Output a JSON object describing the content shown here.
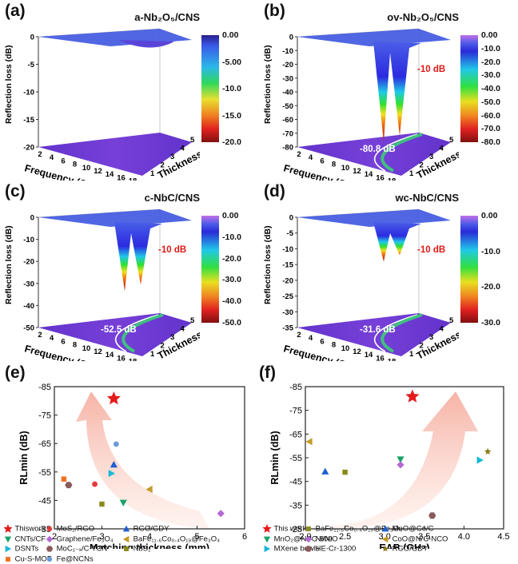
{
  "panels3d": [
    {
      "label": "(a)",
      "title": "a-Nb₂O₅/CNS",
      "cbar": [
        "0.00",
        "-5.00",
        "-10.0",
        "-15.0",
        "-20.0"
      ],
      "zticks": [
        "0",
        "-5",
        "-10",
        "-15",
        "-20"
      ],
      "min_label": "",
      "ten_label": ""
    },
    {
      "label": "(b)",
      "title": "ov-Nb₂O₅/CNS",
      "cbar": [
        "0.00",
        "-10.0",
        "-20.0",
        "-30.0",
        "-40.0",
        "-50.0",
        "-60.0",
        "-70.0",
        "-80.0"
      ],
      "zticks": [
        "0",
        "-10",
        "-20",
        "-30",
        "-40",
        "-50",
        "-60",
        "-70",
        "-80"
      ],
      "min_label": "-80.8 dB",
      "ten_label": "-10 dB"
    },
    {
      "label": "(c)",
      "title": "c-NbC/CNS",
      "cbar": [
        "0.00",
        "-10.0",
        "-20.0",
        "-30.0",
        "-40.0",
        "-50.0"
      ],
      "zticks": [
        "0",
        "-10",
        "-20",
        "-30",
        "-40",
        "-50"
      ],
      "min_label": "-52.5 dB",
      "ten_label": "-10 dB"
    },
    {
      "label": "(d)",
      "title": "wc-NbC/CNS",
      "cbar": [
        "0.00",
        "-10.0",
        "-20.0",
        "-30.0"
      ],
      "zticks": [
        "0",
        "-5",
        "-10",
        "-15",
        "-20",
        "-25",
        "-30",
        "-35"
      ],
      "min_label": "-31.6 dB",
      "ten_label": "-10 dB"
    }
  ],
  "axes3d": {
    "zlabel": "Reflection loss (dB)",
    "xlabel": "Frequency (GHz)",
    "ylabel": "Thickness (mm)",
    "xticks": [
      "2",
      "4",
      "6",
      "8",
      "10",
      "12",
      "14",
      "16",
      "18"
    ],
    "yticks": [
      "1",
      "2",
      "3",
      "4",
      "5"
    ]
  },
  "chart_data": [
    {
      "type": "scatter",
      "panel": "(e)",
      "xlabel": "Matching thickness (mm)",
      "ylabel": "RLmin (dB)",
      "xlim": [
        2,
        6
      ],
      "ylim": [
        -85,
        -35
      ],
      "xticks": [
        "2",
        "3",
        "4",
        "5",
        "6"
      ],
      "yticks": [
        "-85",
        "-75",
        "-65",
        "-55",
        "-45",
        "-35"
      ],
      "points": [
        {
          "name": "Thiswork",
          "x": 3.25,
          "y": -80.8,
          "color": "#e41a1c",
          "marker": "star"
        },
        {
          "name": "MoS₂/RGO",
          "x": 2.85,
          "y": -50.7,
          "color": "#e23b3b",
          "marker": "circle"
        },
        {
          "name": "RGO/GDY",
          "x": 3.25,
          "y": -57.6,
          "color": "#1f5fd1",
          "marker": "triangle-up"
        },
        {
          "name": "CNTs/CF",
          "x": 3.45,
          "y": -44.2,
          "color": "#19a36a",
          "marker": "triangle-down"
        },
        {
          "name": "Graphene/Fe₃O₄",
          "x": 5.5,
          "y": -40.4,
          "color": "#b36ad4",
          "marker": "diamond"
        },
        {
          "name": "BaFe₁₁.₆Co₀.₄O₁₉@Fe₃O₄",
          "x": 4.0,
          "y": -48.9,
          "color": "#c49a2a",
          "marker": "triangle-left"
        },
        {
          "name": "DSNTs",
          "x": 3.2,
          "y": -54.5,
          "color": "#19b8d6",
          "marker": "triangle-right"
        },
        {
          "name": "MoC₁₋ₓ/C-TCN",
          "x": 2.3,
          "y": -50.4,
          "color": "#8a5a5a",
          "marker": "hexagon"
        },
        {
          "name": "NbS₂",
          "x": 3.0,
          "y": -43.7,
          "color": "#8a8a1a",
          "marker": "square"
        },
        {
          "name": "Cu-S-MOF",
          "x": 2.2,
          "y": -52.5,
          "color": "#f07020",
          "marker": "square"
        },
        {
          "name": "Fe@NCNs",
          "x": 3.3,
          "y": -64.8,
          "color": "#6b9bd8",
          "marker": "sphere"
        }
      ],
      "legend": [
        "Thiswork",
        "MoS₂/RGO",
        "RGO/GDY",
        "CNTs/CF",
        "Graphene/Fe₃O₄",
        "BaFe₁₁.₆Co₀.₄O₁₉@Fe₃O₄",
        "DSNTs",
        "MoC₁₋ₓ/C-TCN",
        "NbS₂",
        "Cu-S-MOF",
        "Fe@NCNs"
      ]
    },
    {
      "type": "scatter",
      "panel": "(f)",
      "xlabel": "EAB (GHz)",
      "ylabel": "RLmin (dB)",
      "xlim": [
        2.0,
        4.5
      ],
      "ylim": [
        -85,
        -25
      ],
      "xticks": [
        "2.0",
        "2.5",
        "3.0",
        "3.5",
        "4.0",
        "4.5"
      ],
      "yticks": [
        "-85",
        "-75",
        "-65",
        "-55",
        "-45",
        "-35",
        "-25"
      ],
      "points": [
        {
          "name": "This work",
          "x": 3.35,
          "y": -80.8,
          "color": "#e41a1c",
          "marker": "star"
        },
        {
          "name": "BaFe₁₁.₆Co₀.₄O₁₉@Fe₃O₄",
          "x": 2.5,
          "y": -48.9,
          "color": "#8a8a1a",
          "marker": "square"
        },
        {
          "name": "MnO@Co/C",
          "x": 2.25,
          "y": -49.2,
          "color": "#1f5fd1",
          "marker": "triangle-up"
        },
        {
          "name": "MnO₂@NPC-800",
          "x": 3.2,
          "y": -54.3,
          "color": "#19a36a",
          "marker": "triangle-down"
        },
        {
          "name": "Ni/NiO",
          "x": 3.2,
          "y": -52.0,
          "color": "#b36ad4",
          "marker": "diamond"
        },
        {
          "name": "CoO@N/C-NCO",
          "x": 2.05,
          "y": -61.8,
          "color": "#c49a2a",
          "marker": "triangle-left"
        },
        {
          "name": "MXene bowls",
          "x": 4.2,
          "y": -54.0,
          "color": "#19b8d6",
          "marker": "triangle-right"
        },
        {
          "name": "HE-Cr-1300",
          "x": 3.6,
          "y": -30.6,
          "color": "#8a5a5a",
          "marker": "hexagon"
        },
        {
          "name": "RGO/GDY",
          "x": 4.3,
          "y": -57.6,
          "color": "#8a7a1a",
          "marker": "star"
        }
      ],
      "legend": [
        "This work",
        "BaFe₁₁.₆Co₀.₄O₁₉@Fe₃O₄",
        "MnO@Co/C",
        "MnO₂@NPC-800",
        "Ni/NiO",
        "CoO@N/C-NCO",
        "MXene bowls",
        "HE-Cr-1300",
        "RGO/GDY"
      ]
    }
  ]
}
